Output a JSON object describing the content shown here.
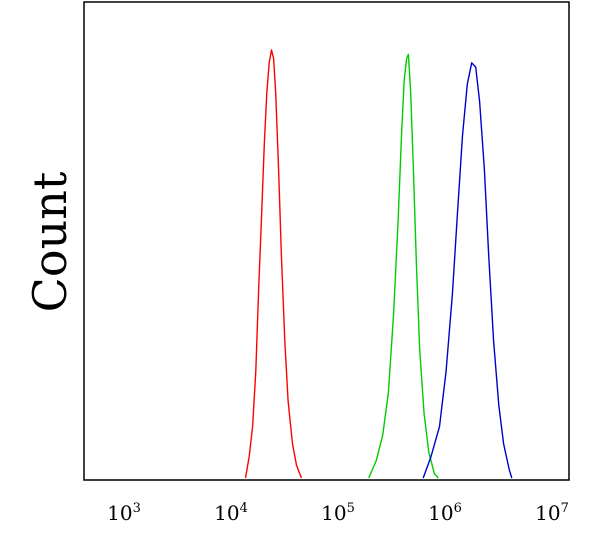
{
  "chart_data": {
    "type": "line",
    "title": "",
    "xlabel": "",
    "ylabel": "Count",
    "x_scale": "log",
    "xlim": [
      500,
      10000000
    ],
    "ylim": [
      0,
      1.05
    ],
    "grid": false,
    "legend": "none",
    "ticks": [
      {
        "base": "10",
        "exp": "3",
        "value": 1000
      },
      {
        "base": "10",
        "exp": "4",
        "value": 10000
      },
      {
        "base": "10",
        "exp": "5",
        "value": 100000
      },
      {
        "base": "10",
        "exp": "6",
        "value": 1000000
      },
      {
        "base": "10",
        "exp": "7",
        "value": 10000000
      }
    ],
    "series": [
      {
        "color": "#ff0000",
        "points": [
          [
            12000,
            0
          ],
          [
            13000,
            0.05
          ],
          [
            14000,
            0.12
          ],
          [
            15000,
            0.25
          ],
          [
            16000,
            0.45
          ],
          [
            17000,
            0.62
          ],
          [
            18000,
            0.78
          ],
          [
            19000,
            0.9
          ],
          [
            20000,
            0.97
          ],
          [
            21000,
            1.0
          ],
          [
            22000,
            0.98
          ],
          [
            23000,
            0.9
          ],
          [
            24500,
            0.72
          ],
          [
            26000,
            0.52
          ],
          [
            28000,
            0.32
          ],
          [
            30000,
            0.18
          ],
          [
            33000,
            0.08
          ],
          [
            36000,
            0.03
          ],
          [
            40000,
            0
          ]
        ]
      },
      {
        "color": "#00cc00",
        "points": [
          [
            170000,
            0
          ],
          [
            200000,
            0.04
          ],
          [
            230000,
            0.1
          ],
          [
            260000,
            0.2
          ],
          [
            290000,
            0.38
          ],
          [
            320000,
            0.6
          ],
          [
            345000,
            0.8
          ],
          [
            365000,
            0.93
          ],
          [
            385000,
            0.98
          ],
          [
            400000,
            0.99
          ],
          [
            420000,
            0.9
          ],
          [
            445000,
            0.72
          ],
          [
            475000,
            0.5
          ],
          [
            510000,
            0.3
          ],
          [
            560000,
            0.15
          ],
          [
            620000,
            0.06
          ],
          [
            700000,
            0.01
          ],
          [
            760000,
            0
          ]
        ]
      },
      {
        "color": "#0000cc",
        "points": [
          [
            550000,
            0
          ],
          [
            650000,
            0.05
          ],
          [
            780000,
            0.12
          ],
          [
            900000,
            0.25
          ],
          [
            1030000,
            0.43
          ],
          [
            1150000,
            0.62
          ],
          [
            1280000,
            0.8
          ],
          [
            1420000,
            0.92
          ],
          [
            1560000,
            0.97
          ],
          [
            1700000,
            0.96
          ],
          [
            1850000,
            0.88
          ],
          [
            2050000,
            0.72
          ],
          [
            2250000,
            0.52
          ],
          [
            2500000,
            0.32
          ],
          [
            2800000,
            0.17
          ],
          [
            3100000,
            0.08
          ],
          [
            3500000,
            0.02
          ],
          [
            3700000,
            0
          ]
        ]
      }
    ]
  }
}
